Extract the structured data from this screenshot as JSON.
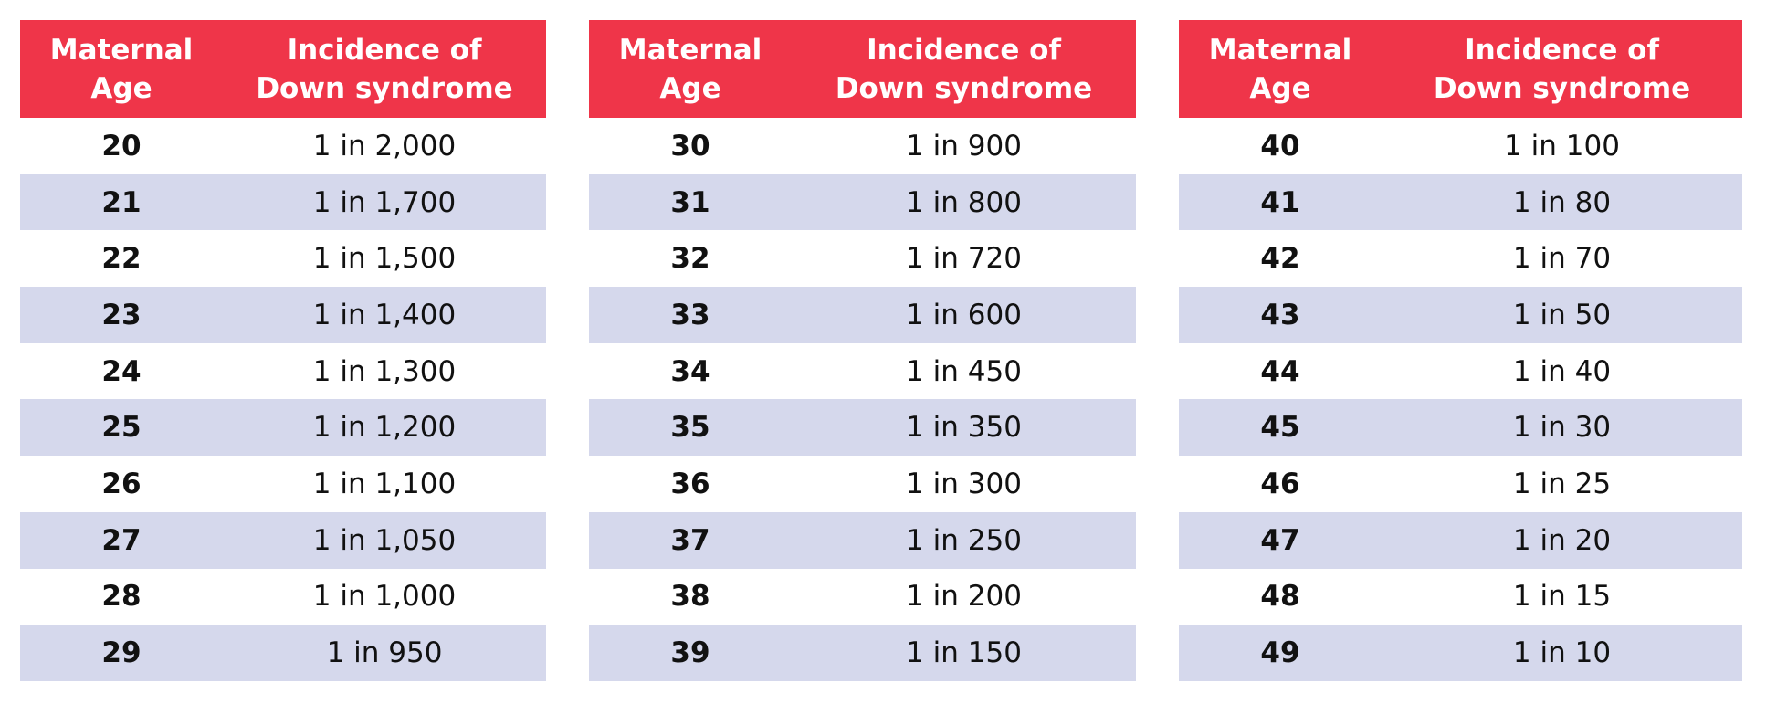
{
  "tables": [
    {
      "header": [
        [
          "Maternal",
          "Age"
        ],
        [
          "Incidence of",
          "Down syndrome"
        ]
      ],
      "rows": [
        [
          20,
          "1 in 2,000"
        ],
        [
          21,
          "1 in 1,700"
        ],
        [
          22,
          "1 in 1,500"
        ],
        [
          23,
          "1 in 1,400"
        ],
        [
          24,
          "1 in 1,300"
        ],
        [
          25,
          "1 in 1,200"
        ],
        [
          26,
          "1 in 1,100"
        ],
        [
          27,
          "1 in 1,050"
        ],
        [
          28,
          "1 in 1,000"
        ],
        [
          29,
          "1 in 950"
        ]
      ]
    },
    {
      "header": [
        [
          "Maternal",
          "Age"
        ],
        [
          "Incidence of",
          "Down syndrome"
        ]
      ],
      "rows": [
        [
          30,
          "1 in 900"
        ],
        [
          31,
          "1 in 800"
        ],
        [
          32,
          "1 in 720"
        ],
        [
          33,
          "1 in 600"
        ],
        [
          34,
          "1 in 450"
        ],
        [
          35,
          "1 in 350"
        ],
        [
          36,
          "1 in 300"
        ],
        [
          37,
          "1 in 250"
        ],
        [
          38,
          "1 in 200"
        ],
        [
          39,
          "1 in 150"
        ]
      ]
    },
    {
      "header": [
        [
          "Maternal",
          "Age"
        ],
        [
          "Incidence of",
          "Down syndrome"
        ]
      ],
      "rows": [
        [
          40,
          "1 in 100"
        ],
        [
          41,
          "1 in 80"
        ],
        [
          42,
          "1 in 70"
        ],
        [
          43,
          "1 in 50"
        ],
        [
          44,
          "1 in 40"
        ],
        [
          45,
          "1 in 30"
        ],
        [
          46,
          "1 in 25"
        ],
        [
          47,
          "1 in 20"
        ],
        [
          48,
          "1 in 15"
        ],
        [
          49,
          "1 in 10"
        ]
      ]
    }
  ]
}
